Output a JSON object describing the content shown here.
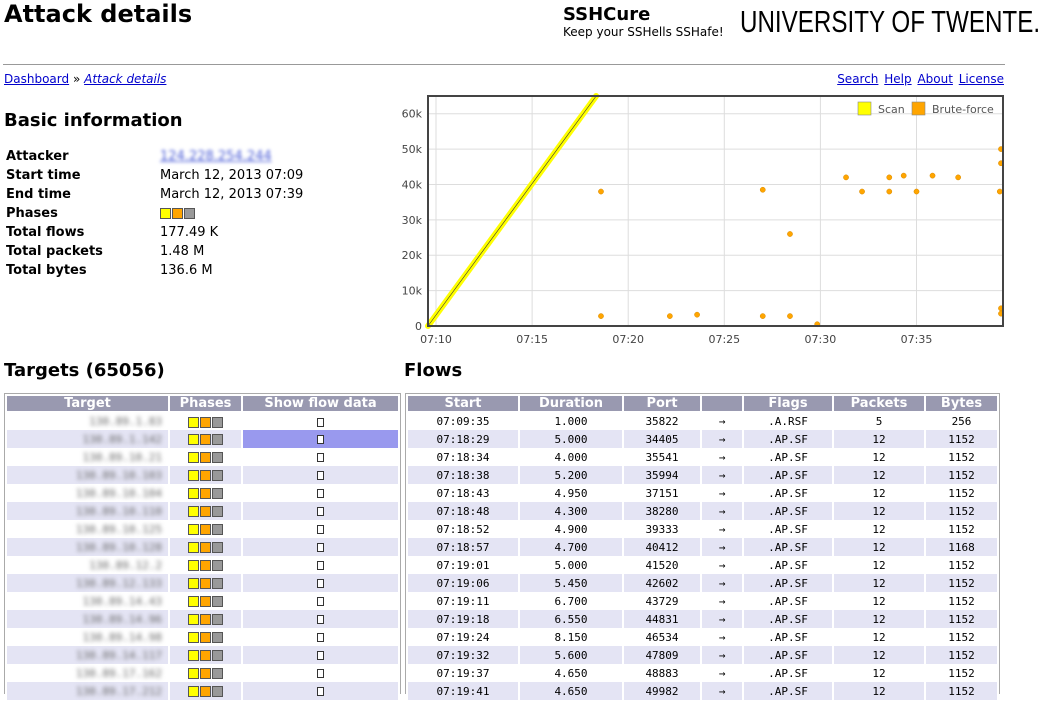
{
  "header": {
    "title": "Attack details",
    "brand_name": "SSHCure",
    "brand_tagline": "Keep your SSHells SSHafe!",
    "university": "UNIVERSITY OF TWENTE."
  },
  "breadcrumb": {
    "home": "Dashboard",
    "sep": "»",
    "current": "Attack details"
  },
  "top_links": [
    "Search",
    "Help",
    "About",
    "License"
  ],
  "basic": {
    "title": "Basic information",
    "rows": [
      {
        "key": "Attacker",
        "value": "124.228.254.244"
      },
      {
        "key": "Start time",
        "value": "March 12, 2013 07:09"
      },
      {
        "key": "End time",
        "value": "March 12, 2013 07:39"
      },
      {
        "key": "Phases",
        "value": ""
      },
      {
        "key": "Total flows",
        "value": "177.49 K"
      },
      {
        "key": "Total packets",
        "value": "1.48 M"
      },
      {
        "key": "Total bytes",
        "value": "136.6 M"
      }
    ]
  },
  "chart_data": {
    "type": "scatter",
    "title": "",
    "xlabel": "",
    "ylabel": "",
    "x_ticks": [
      "07:10",
      "07:15",
      "07:20",
      "07:25",
      "07:30",
      "07:35"
    ],
    "y_ticks": [
      "0",
      "10k",
      "20k",
      "30k",
      "40k",
      "50k",
      "60k"
    ],
    "xlim": [
      "07:09:35",
      "07:39:30"
    ],
    "ylim": [
      0,
      65000
    ],
    "grid": true,
    "legend_position": "top-right",
    "series": [
      {
        "name": "Scan",
        "color": "#ffff00",
        "style": "line",
        "points": [
          [
            "07:09:35",
            0
          ],
          [
            "07:18:20",
            65000
          ]
        ]
      },
      {
        "name": "Brute-force",
        "color": "#ffa500",
        "style": "dots",
        "points": [
          [
            "07:18:35",
            38000
          ],
          [
            "07:18:35",
            2800
          ],
          [
            "07:22:10",
            2800
          ],
          [
            "07:23:35",
            3200
          ],
          [
            "07:27:00",
            38500
          ],
          [
            "07:27:00",
            2800
          ],
          [
            "07:28:25",
            26000
          ],
          [
            "07:28:25",
            2800
          ],
          [
            "07:29:50",
            500
          ],
          [
            "07:31:20",
            42000
          ],
          [
            "07:32:10",
            38000
          ],
          [
            "07:33:35",
            42000
          ],
          [
            "07:33:35",
            38000
          ],
          [
            "07:34:20",
            42500
          ],
          [
            "07:35:00",
            38000
          ],
          [
            "07:35:50",
            42500
          ],
          [
            "07:37:10",
            42000
          ],
          [
            "07:39:20",
            38000
          ],
          [
            "07:39:30",
            50000
          ],
          [
            "07:39:30",
            46000
          ],
          [
            "07:39:30",
            5000
          ],
          [
            "07:39:30",
            3500
          ]
        ]
      }
    ]
  },
  "targets": {
    "title": "Targets (65056)",
    "columns": [
      "Target",
      "Phases",
      "Show flow data"
    ],
    "rows": [
      "130.89.1.83",
      "130.89.1.142",
      "130.89.10.21",
      "130.89.10.103",
      "130.89.10.104",
      "130.89.10.110",
      "130.89.10.125",
      "130.89.10.128",
      "130.89.12.2",
      "130.89.12.133",
      "130.89.14.43",
      "130.89.14.96",
      "130.89.14.98",
      "130.89.14.117",
      "130.89.17.162",
      "130.89.17.212"
    ]
  },
  "flows": {
    "title": "Flows",
    "columns": [
      "Start",
      "Duration",
      "Port",
      "",
      "Flags",
      "Packets",
      "Bytes"
    ],
    "rows": [
      [
        "07:09:35",
        "1.000",
        "35822",
        "→",
        ".A.RSF",
        "5",
        "256"
      ],
      [
        "07:18:29",
        "5.000",
        "34405",
        "→",
        ".AP.SF",
        "12",
        "1152"
      ],
      [
        "07:18:34",
        "4.000",
        "35541",
        "→",
        ".AP.SF",
        "12",
        "1152"
      ],
      [
        "07:18:38",
        "5.200",
        "35994",
        "→",
        ".AP.SF",
        "12",
        "1152"
      ],
      [
        "07:18:43",
        "4.950",
        "37151",
        "→",
        ".AP.SF",
        "12",
        "1152"
      ],
      [
        "07:18:48",
        "4.300",
        "38280",
        "→",
        ".AP.SF",
        "12",
        "1152"
      ],
      [
        "07:18:52",
        "4.900",
        "39333",
        "→",
        ".AP.SF",
        "12",
        "1152"
      ],
      [
        "07:18:57",
        "4.700",
        "40412",
        "→",
        ".AP.SF",
        "12",
        "1168"
      ],
      [
        "07:19:01",
        "5.000",
        "41520",
        "→",
        ".AP.SF",
        "12",
        "1152"
      ],
      [
        "07:19:06",
        "5.450",
        "42602",
        "→",
        ".AP.SF",
        "12",
        "1152"
      ],
      [
        "07:19:11",
        "6.700",
        "43729",
        "→",
        ".AP.SF",
        "12",
        "1152"
      ],
      [
        "07:19:18",
        "6.550",
        "44831",
        "→",
        ".AP.SF",
        "12",
        "1152"
      ],
      [
        "07:19:24",
        "8.150",
        "46534",
        "→",
        ".AP.SF",
        "12",
        "1152"
      ],
      [
        "07:19:32",
        "5.600",
        "47809",
        "→",
        ".AP.SF",
        "12",
        "1152"
      ],
      [
        "07:19:37",
        "4.650",
        "48883",
        "→",
        ".AP.SF",
        "12",
        "1152"
      ],
      [
        "07:19:41",
        "4.650",
        "49982",
        "→",
        ".AP.SF",
        "12",
        "1152"
      ]
    ]
  }
}
